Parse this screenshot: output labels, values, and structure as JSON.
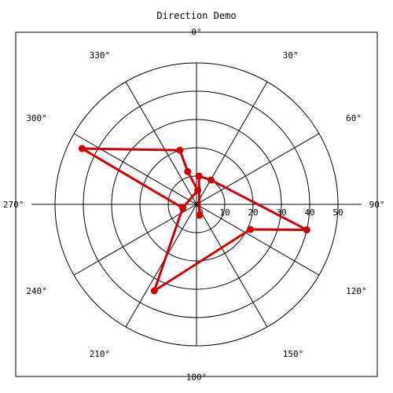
{
  "chart_data": {
    "type": "polar-line",
    "title": "Direction Demo",
    "radial_ticks": [
      "10",
      "20",
      "30",
      "40",
      "50"
    ],
    "r_max": 50,
    "angular_ticks": [
      {
        "deg": 0,
        "label": "0°"
      },
      {
        "deg": 30,
        "label": "30°"
      },
      {
        "deg": 60,
        "label": "60°"
      },
      {
        "deg": 90,
        "label": "90°"
      },
      {
        "deg": 120,
        "label": "120°"
      },
      {
        "deg": 150,
        "label": "150°"
      },
      {
        "deg": 180,
        "label": "180°"
      },
      {
        "deg": 210,
        "label": "210°"
      },
      {
        "deg": 240,
        "label": "240°"
      },
      {
        "deg": 270,
        "label": "270°"
      },
      {
        "deg": 300,
        "label": "300°"
      },
      {
        "deg": 330,
        "label": "330°"
      }
    ],
    "angle_convention": "clockwise from north",
    "series": [
      {
        "color": "#cc0000",
        "points": [
          {
            "angle": 165,
            "r": 4
          },
          {
            "angle": 5,
            "r": 10
          },
          {
            "angle": 31,
            "r": 10
          },
          {
            "angle": 103,
            "r": 40
          },
          {
            "angle": 115,
            "r": 21
          },
          {
            "angle": 206,
            "r": 34
          },
          {
            "angle": 256,
            "r": 5
          },
          {
            "angle": 5,
            "r": 5
          },
          {
            "angle": 345,
            "r": 12
          },
          {
            "angle": 343,
            "r": 20
          },
          {
            "angle": 296,
            "r": 45
          },
          {
            "angle": 255,
            "r": 5
          }
        ]
      }
    ]
  }
}
